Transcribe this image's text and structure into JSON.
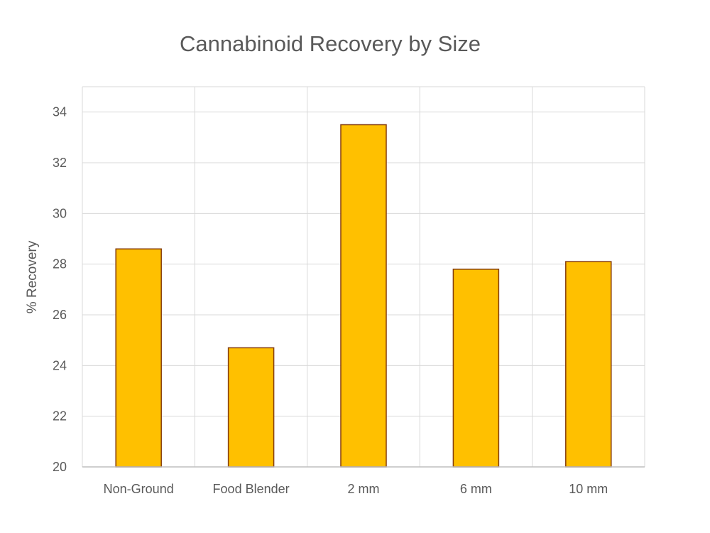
{
  "chart_data": {
    "type": "bar",
    "title": "Cannabinoid Recovery by Size",
    "xlabel": "",
    "ylabel": "% Recovery",
    "categories": [
      "Non-Ground",
      "Food Blender",
      "2 mm",
      "6 mm",
      "10 mm"
    ],
    "values": [
      28.6,
      24.7,
      33.5,
      27.8,
      28.1
    ],
    "ylim": [
      20,
      35
    ],
    "yticks": [
      20,
      22,
      24,
      26,
      28,
      30,
      32,
      34
    ],
    "grid": true,
    "legend": "none",
    "colors": {
      "bar_fill": "#FFC000",
      "bar_stroke": "#843C0C",
      "grid": "#D9D9D9",
      "text": "#595959"
    }
  }
}
